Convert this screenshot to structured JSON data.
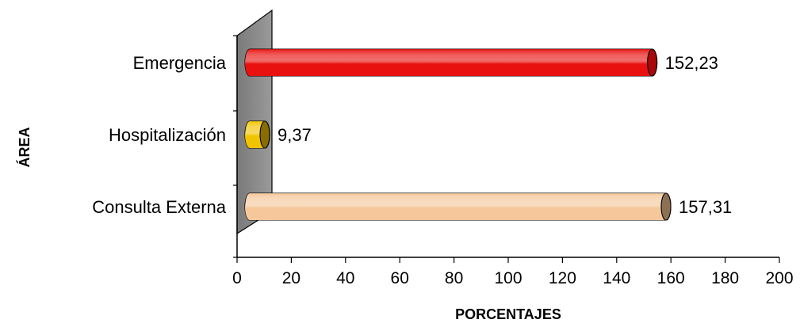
{
  "chart_data": {
    "type": "bar",
    "orientation": "horizontal",
    "style": "3d-cylinder",
    "categories": [
      "Emergencia",
      "Hospitalización",
      "Consulta Externa"
    ],
    "values": [
      152.23,
      9.37,
      157.31
    ],
    "value_labels": [
      "152,23",
      "9,37",
      "157,31"
    ],
    "bar_colors": [
      "#e8110f",
      "#f2c400",
      "#f5c79a"
    ],
    "cap_colors": [
      "#a80808",
      "#8a6d00",
      "#8d7053"
    ],
    "xlabel": "PORCENTAJES",
    "ylabel": "ÁREA",
    "xlim": [
      0,
      200
    ],
    "xticks": [
      0,
      20,
      40,
      60,
      80,
      100,
      120,
      140,
      160,
      180,
      200
    ],
    "grid": false,
    "legend": "none"
  }
}
